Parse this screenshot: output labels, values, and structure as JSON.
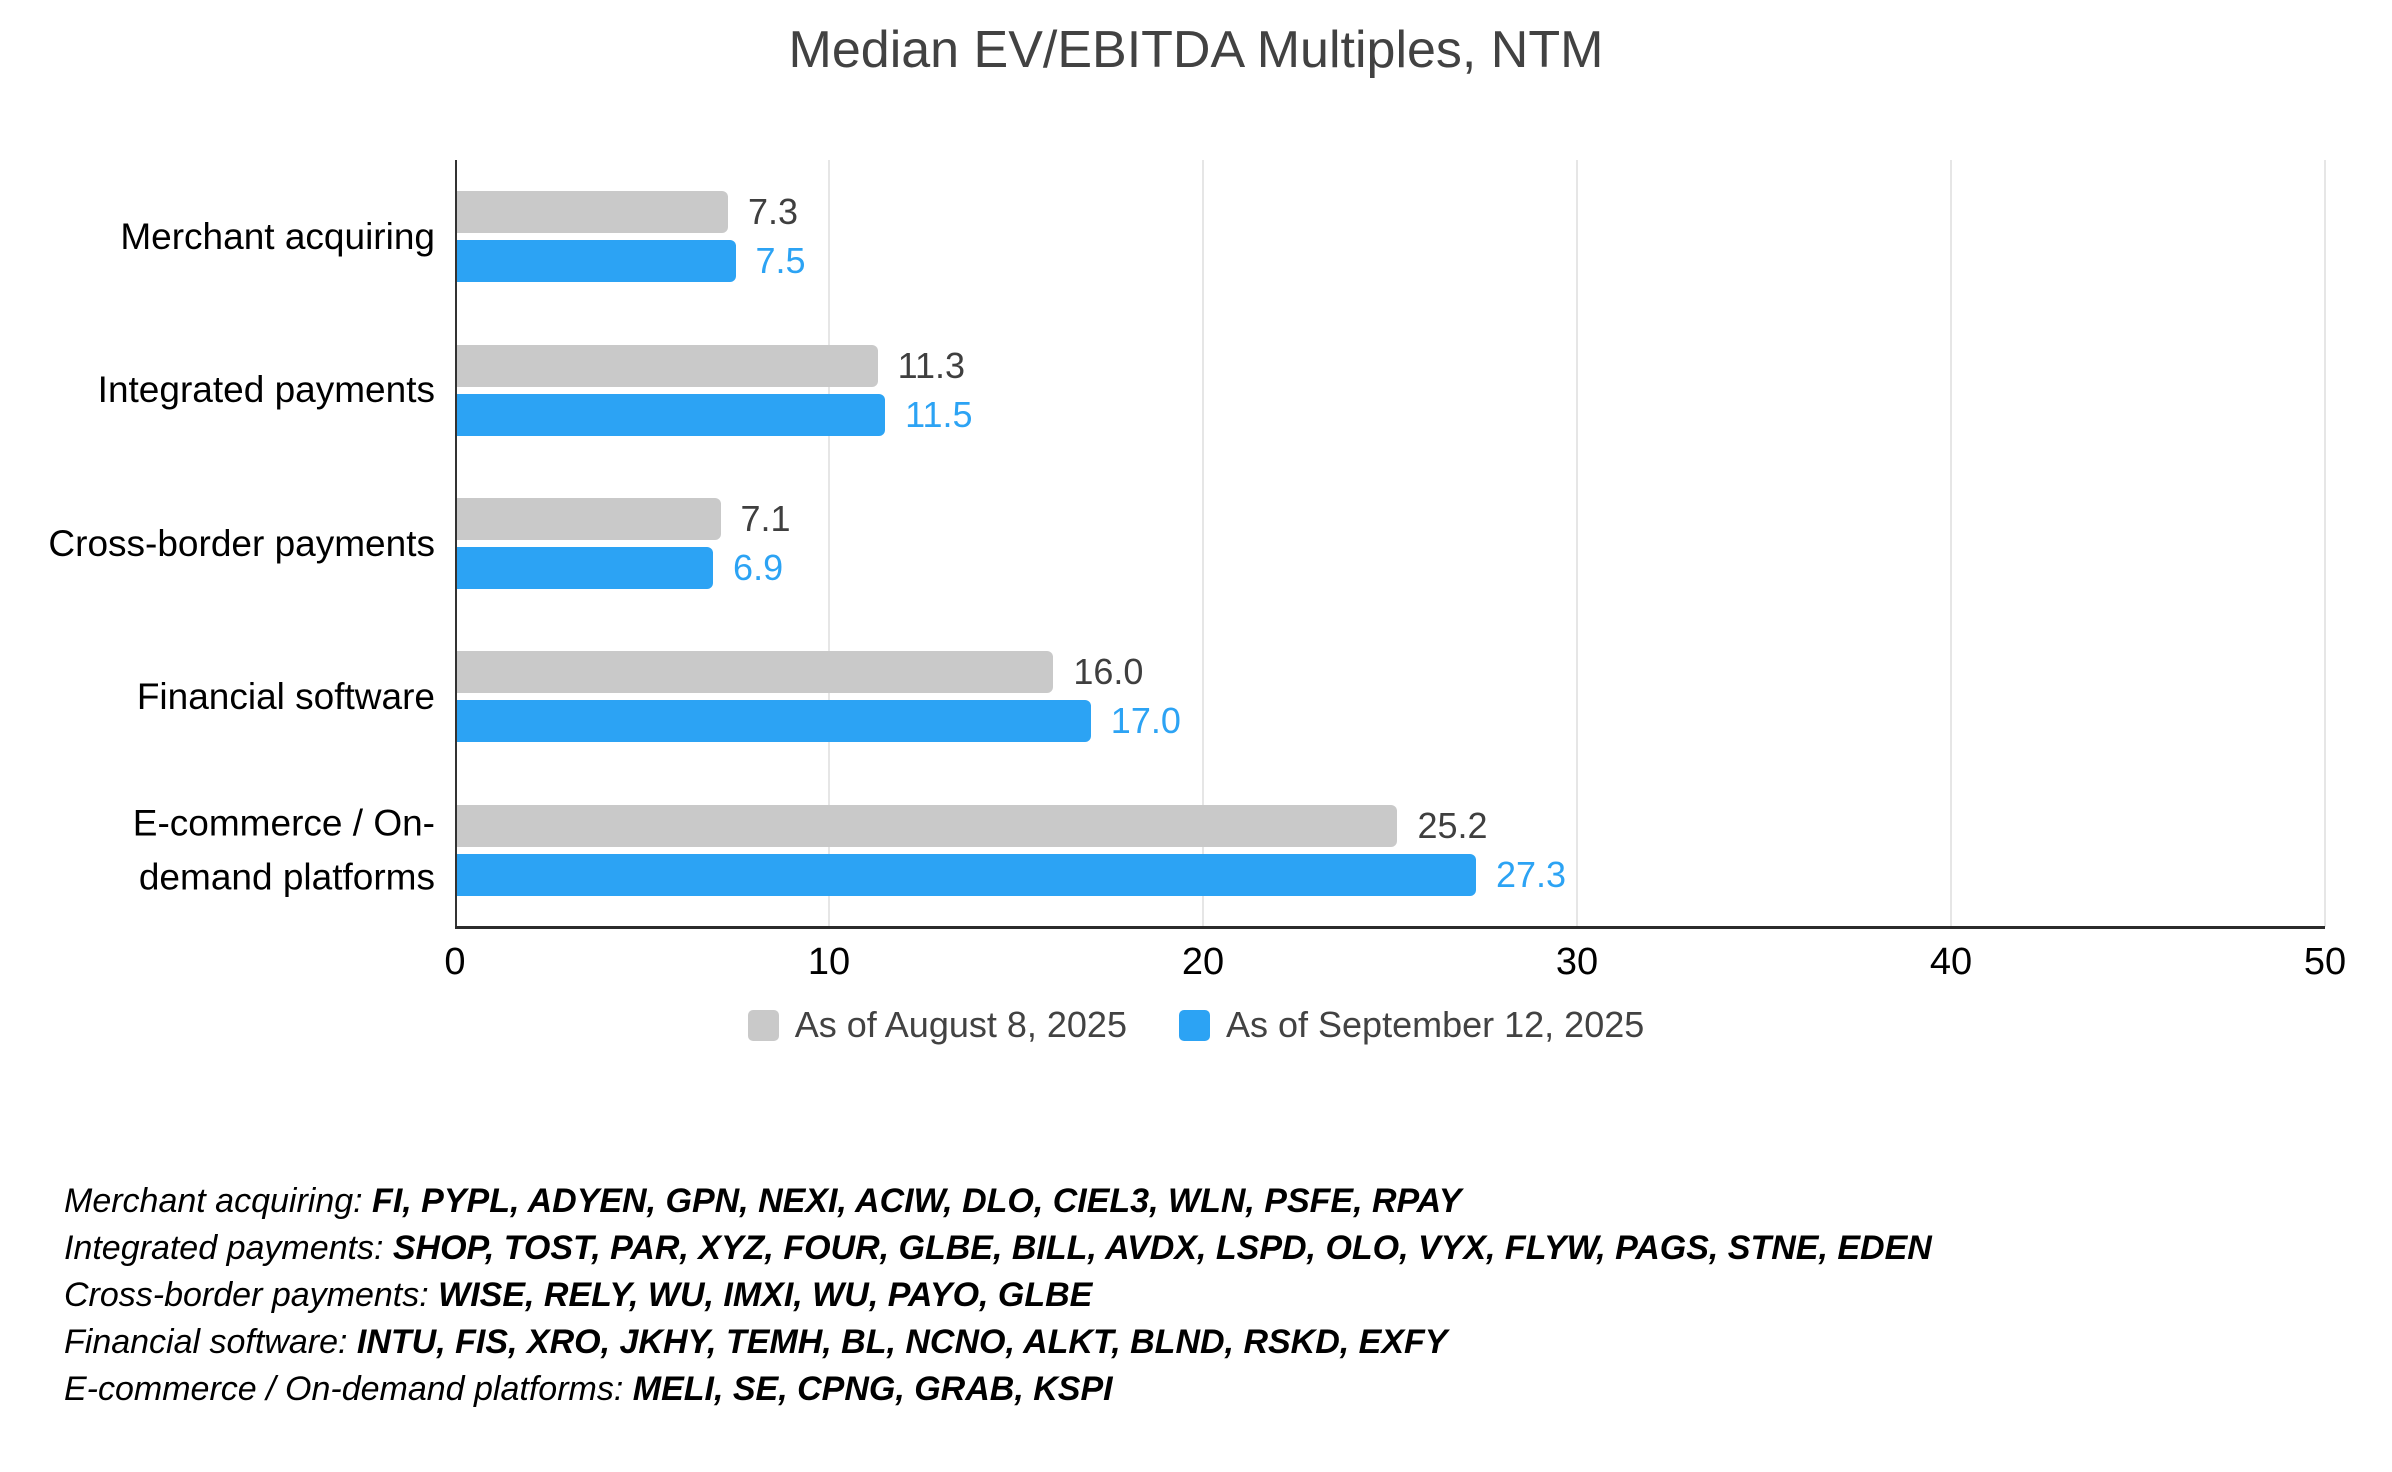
{
  "title": "Median EV/EBITDA Multiples, NTM",
  "chart_data": {
    "type": "bar",
    "orientation": "horizontal",
    "title": "Median EV/EBITDA Multiples, NTM",
    "xlabel": "",
    "ylabel": "",
    "xlim": [
      0,
      50
    ],
    "x_ticks": [
      0,
      10,
      20,
      30,
      40,
      50
    ],
    "grid": "vertical",
    "legend_position": "bottom",
    "categories": [
      {
        "name": "Merchant acquiring",
        "lines": [
          "Merchant acquiring"
        ]
      },
      {
        "name": "Integrated payments",
        "lines": [
          "Integrated payments"
        ]
      },
      {
        "name": "Cross-border payments",
        "lines": [
          "Cross-border payments"
        ]
      },
      {
        "name": "Financial software",
        "lines": [
          "Financial software"
        ]
      },
      {
        "name": "E-commerce / On-demand platforms",
        "lines": [
          "E-commerce / On-",
          "demand platforms"
        ]
      }
    ],
    "series": [
      {
        "name": "As of August 8, 2025",
        "color": "#c9c9c9",
        "label_color": "#3f3f3f",
        "values": [
          7.3,
          11.3,
          7.1,
          16.0,
          25.2
        ]
      },
      {
        "name": "As of September 12, 2025",
        "color": "#2ca3f4",
        "label_color": "#2ca3f4",
        "values": [
          7.5,
          11.5,
          6.9,
          17.0,
          27.3
        ]
      }
    ]
  },
  "footnotes": [
    {
      "label": "Merchant acquiring: ",
      "tickers": "FI, PYPL, ADYEN, GPN, NEXI, ACIW, DLO, CIEL3, WLN, PSFE, RPAY"
    },
    {
      "label": "Integrated payments: ",
      "tickers": "SHOP, TOST, PAR, XYZ, FOUR, GLBE, BILL, AVDX, LSPD, OLO, VYX, FLYW, PAGS, STNE, EDEN"
    },
    {
      "label": "Cross-border payments: ",
      "tickers": "WISE, RELY, WU, IMXI, WU, PAYO, GLBE"
    },
    {
      "label": "Financial software: ",
      "tickers": "INTU, FIS, XRO, JKHY, TEMH, BL, NCNO, ALKT, BLND, RSKD, EXFY"
    },
    {
      "label": "E-commerce / On-demand platforms: ",
      "tickers": "MELI, SE, CPNG, GRAB, KSPI"
    }
  ]
}
